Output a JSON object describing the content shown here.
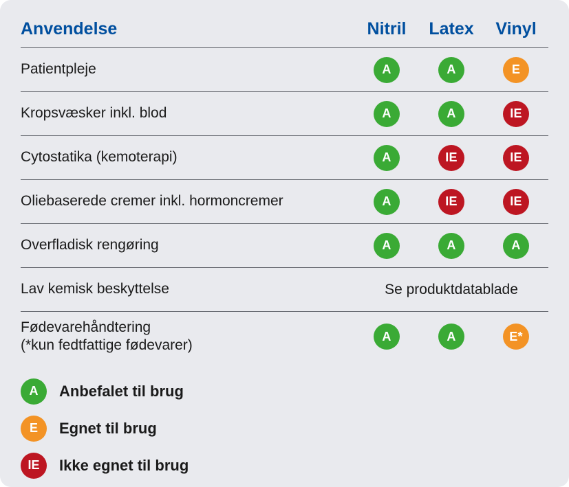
{
  "colors": {
    "card_bg": "#e9eaee",
    "header_text": "#004f9f",
    "divider": "#6a6d74",
    "body_text": "#1a1a1a",
    "badge_green": "#3aaa35",
    "badge_orange": "#f39325",
    "badge_red": "#bd1622",
    "badge_text": "#ffffff"
  },
  "header": {
    "label": "Anvendelse",
    "columns": [
      "Nitril",
      "Latex",
      "Vinyl"
    ]
  },
  "rows": [
    {
      "label": "Patientpleje",
      "badges": [
        "A",
        "A",
        "E"
      ]
    },
    {
      "label": "Kropsvæsker inkl. blod",
      "badges": [
        "A",
        "A",
        "IE"
      ]
    },
    {
      "label": "Cytostatika (kemoterapi)",
      "badges": [
        "A",
        "IE",
        "IE"
      ]
    },
    {
      "label": "Oliebaserede cremer inkl. hormoncremer",
      "badges": [
        "A",
        "IE",
        "IE"
      ]
    },
    {
      "label": "Overfladisk rengøring",
      "badges": [
        "A",
        "A",
        "A"
      ]
    },
    {
      "label": "Lav kemisk beskyttelse",
      "span_text": "Se produktdatablade",
      "noborder": false
    },
    {
      "label": "Fødevarehåndtering\n(*kun fedtfattige fødevarer)",
      "badges": [
        "A",
        "A",
        "E*"
      ],
      "noborder": true
    }
  ],
  "badge_palette": {
    "A": "#3aaa35",
    "E": "#f39325",
    "E*": "#f39325",
    "IE": "#bd1622"
  },
  "legend": [
    {
      "code": "A",
      "color": "#3aaa35",
      "label": "Anbefalet til brug"
    },
    {
      "code": "E",
      "color": "#f39325",
      "label": "Egnet til brug"
    },
    {
      "code": "IE",
      "color": "#bd1622",
      "label": "Ikke egnet til brug"
    }
  ]
}
